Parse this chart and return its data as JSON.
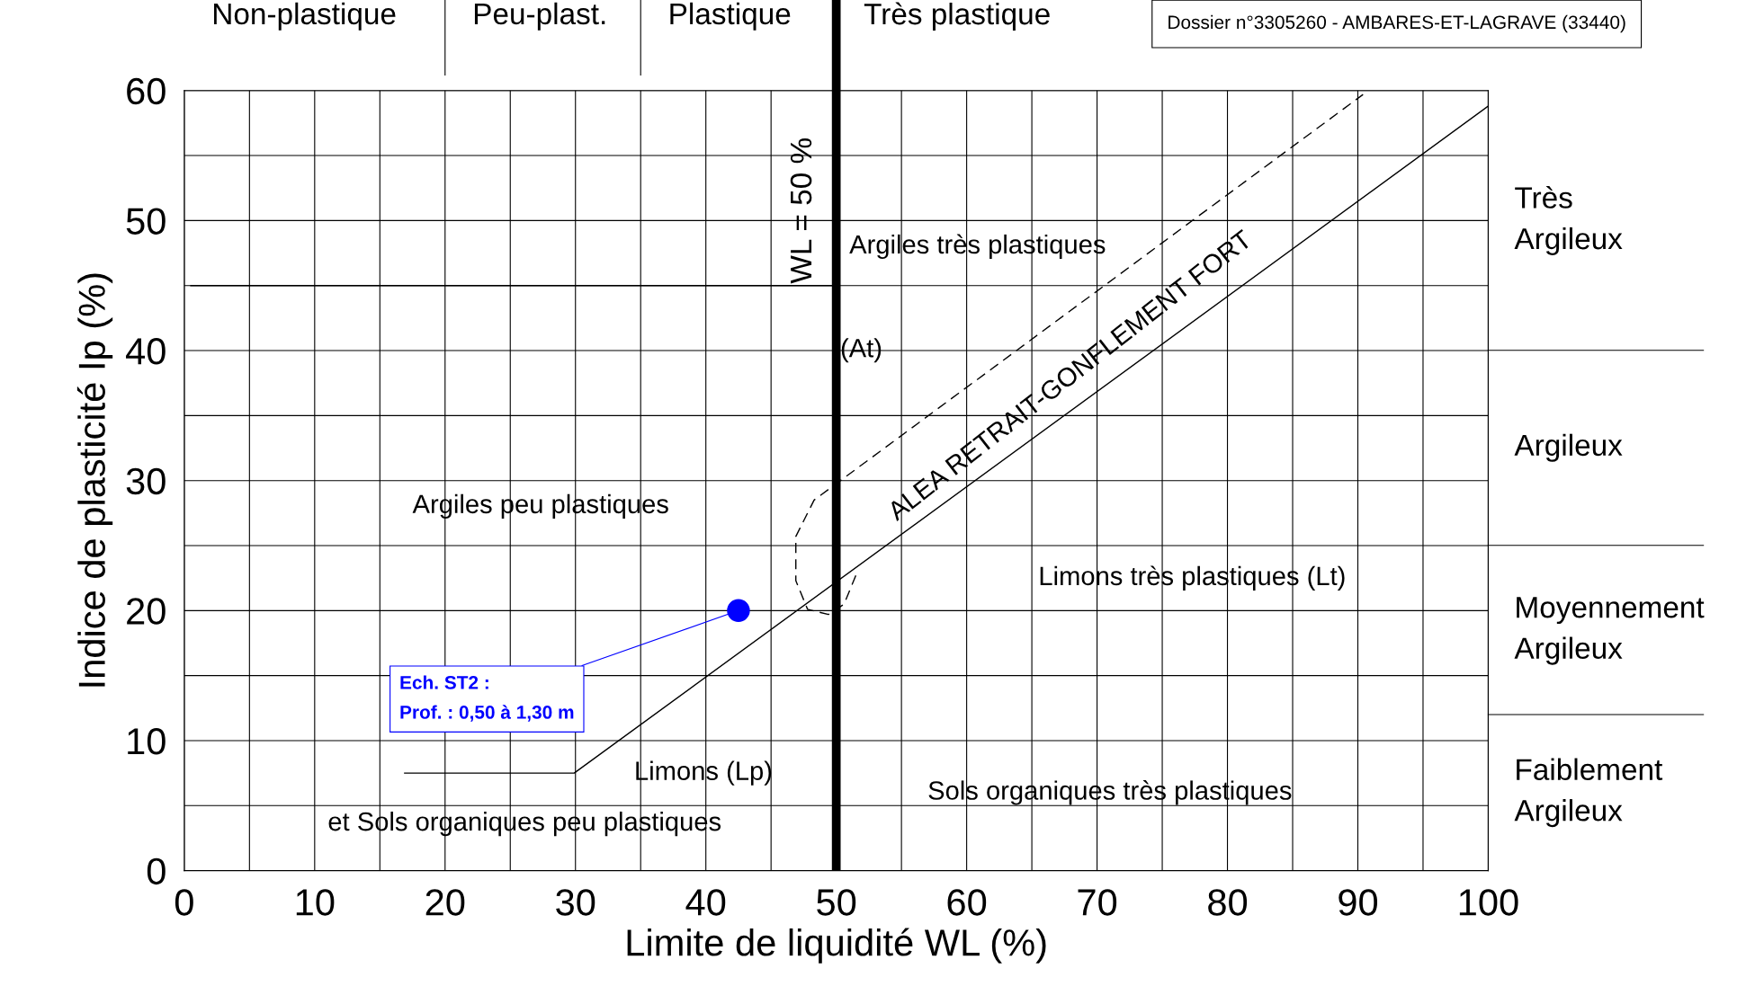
{
  "chart_data": {
    "type": "scatter",
    "xlabel": "Limite de liquidité WL (%)",
    "ylabel": "Indice de plasticité Ip (%)",
    "xlim": [
      0,
      100
    ],
    "ylim": [
      0,
      60
    ],
    "xticks": [
      0,
      {
        "value": 5,
        "label": null
      },
      10,
      {
        "value": 15,
        "label": null
      },
      20,
      {
        "value": 25,
        "label": null
      },
      30,
      {
        "value": 35,
        "label": null
      },
      40,
      {
        "value": 45,
        "label": null
      },
      50,
      {
        "value": 55,
        "label": null
      },
      60,
      {
        "value": 65,
        "label": null
      },
      70,
      {
        "value": 75,
        "label": null
      },
      80,
      {
        "value": 85,
        "label": null
      },
      90,
      {
        "value": 95,
        "label": null
      },
      100
    ],
    "yticks": [
      0,
      {
        "value": 5,
        "label": null
      },
      10,
      {
        "value": 15,
        "label": null
      },
      20,
      {
        "value": 25,
        "label": null
      },
      30,
      {
        "value": 35,
        "label": null
      },
      40,
      {
        "value": 45,
        "label": null
      },
      50,
      {
        "value": 55,
        "label": null
      },
      60
    ],
    "grid": true,
    "series": [
      {
        "x": [
          42.5
        ],
        "values": [
          20
        ],
        "color": "#0000ff",
        "marker": "circle"
      },
      {
        "type": "line",
        "x": [
          16.9,
          29.9,
          100
        ],
        "values": [
          7.5,
          7.5,
          58.8
        ],
        "color": "#000000",
        "line_style": "solid"
      },
      {
        "type": "line",
        "x": [
          51.5,
          50.6,
          49.4,
          47.8,
          46.9,
          46.9,
          48.3,
          90.4
        ],
        "values": [
          22.7,
          20.5,
          19.7,
          20.1,
          22.3,
          25.7,
          28.5,
          59.7
        ],
        "color": "#000000",
        "line_style": "dashed"
      },
      {
        "type": "line",
        "x": [
          0.5,
          50
        ],
        "values": [
          45,
          45
        ],
        "color": "#000000",
        "line_style": "solid"
      }
    ],
    "ref_lines": [
      {
        "axis": "x",
        "value": 50,
        "label": "WL = 50 %",
        "color": "#000000"
      }
    ],
    "annotations": [
      "Dossier n°3305260 - AMBARES-ET-LAGRAVE (33440)",
      {
        "text": "Ech. ST2 :\nProf. : 0,50 à 1,30 m",
        "x": 42.5,
        "y": 20
      },
      "Argiles très plastiques",
      "(At)",
      "Argiles peu plastiques",
      "Limons très plastiques (Lt)",
      "Limons (Lp)",
      "et Sols organiques peu plastiques",
      "Sols organiques très plastiques",
      "ALEA RETRAIT-GONFLEMENT FORT",
      "Non-plastique",
      "Peu-plast.",
      "Plastique",
      "Très plastique",
      "Très\nArgileux",
      "Argileux",
      "Moyennement\nArgileux",
      "Faiblement\nArgileux"
    ]
  }
}
